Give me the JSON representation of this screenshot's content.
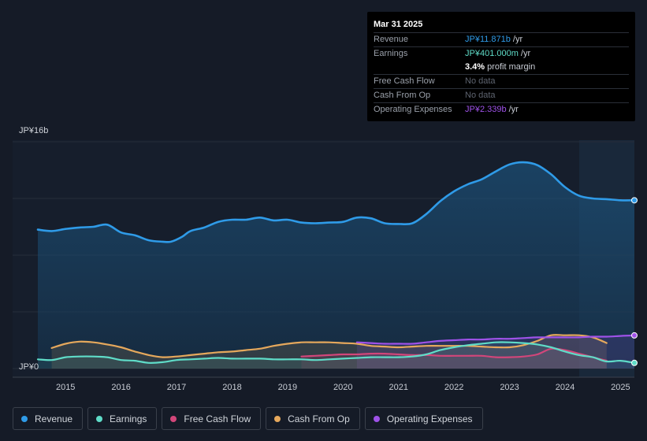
{
  "tooltip": {
    "date": "Mar 31 2025",
    "revenue_label": "Revenue",
    "revenue_value": "JP¥11.871b",
    "earnings_label": "Earnings",
    "earnings_value": "JP¥401.000m",
    "margin_value": "3.4%",
    "margin_text": "profit margin",
    "fcf_label": "Free Cash Flow",
    "cfo_label": "Cash From Op",
    "opex_label": "Operating Expenses",
    "opex_value": "JP¥2.339b",
    "per_year": "/yr",
    "no_data": "No data"
  },
  "colors": {
    "revenue": "#2f9be8",
    "earnings": "#5fdcc8",
    "fcf": "#d2467a",
    "cfo": "#e5a85c",
    "opex": "#9e52e8"
  },
  "legend": [
    {
      "label": "Revenue",
      "color": "#2f9be8"
    },
    {
      "label": "Earnings",
      "color": "#5fdcc8"
    },
    {
      "label": "Free Cash Flow",
      "color": "#d2467a"
    },
    {
      "label": "Cash From Op",
      "color": "#e5a85c"
    },
    {
      "label": "Operating Expenses",
      "color": "#9e52e8"
    }
  ],
  "chart_data": {
    "type": "area",
    "title": "",
    "y_unit": "JP¥ billions",
    "ylim": [
      0,
      16
    ],
    "y_tick_labels": [
      "JP¥16b",
      "JP¥0"
    ],
    "x_tick_labels": [
      "2015",
      "2016",
      "2017",
      "2018",
      "2019",
      "2020",
      "2021",
      "2022",
      "2023",
      "2024",
      "2025"
    ],
    "xlim": [
      2014.5,
      2025.25
    ],
    "series": [
      {
        "name": "Revenue",
        "key": "revenue",
        "points": [
          [
            2014.5,
            9.8
          ],
          [
            2014.75,
            9.7
          ],
          [
            2015.0,
            9.85
          ],
          [
            2015.25,
            9.95
          ],
          [
            2015.5,
            10.0
          ],
          [
            2015.75,
            10.15
          ],
          [
            2016.0,
            9.6
          ],
          [
            2016.25,
            9.4
          ],
          [
            2016.5,
            9.05
          ],
          [
            2016.75,
            8.95
          ],
          [
            2016.9,
            8.95
          ],
          [
            2017.1,
            9.3
          ],
          [
            2017.25,
            9.7
          ],
          [
            2017.5,
            9.95
          ],
          [
            2017.75,
            10.35
          ],
          [
            2018.0,
            10.5
          ],
          [
            2018.25,
            10.5
          ],
          [
            2018.5,
            10.65
          ],
          [
            2018.75,
            10.45
          ],
          [
            2019.0,
            10.5
          ],
          [
            2019.25,
            10.3
          ],
          [
            2019.5,
            10.25
          ],
          [
            2019.75,
            10.3
          ],
          [
            2020.0,
            10.35
          ],
          [
            2020.25,
            10.65
          ],
          [
            2020.5,
            10.6
          ],
          [
            2020.75,
            10.25
          ],
          [
            2021.0,
            10.2
          ],
          [
            2021.25,
            10.25
          ],
          [
            2021.5,
            10.9
          ],
          [
            2021.75,
            11.8
          ],
          [
            2022.0,
            12.5
          ],
          [
            2022.25,
            13.0
          ],
          [
            2022.5,
            13.35
          ],
          [
            2022.75,
            13.9
          ],
          [
            2023.0,
            14.4
          ],
          [
            2023.25,
            14.55
          ],
          [
            2023.5,
            14.35
          ],
          [
            2023.75,
            13.7
          ],
          [
            2024.0,
            12.8
          ],
          [
            2024.25,
            12.2
          ],
          [
            2024.5,
            12.0
          ],
          [
            2024.75,
            11.95
          ],
          [
            2025.0,
            11.87
          ],
          [
            2025.25,
            11.871
          ]
        ]
      },
      {
        "name": "Earnings",
        "key": "earnings",
        "points": [
          [
            2014.5,
            0.65
          ],
          [
            2014.75,
            0.6
          ],
          [
            2015.0,
            0.8
          ],
          [
            2015.25,
            0.85
          ],
          [
            2015.5,
            0.85
          ],
          [
            2015.75,
            0.8
          ],
          [
            2016.0,
            0.6
          ],
          [
            2016.25,
            0.55
          ],
          [
            2016.5,
            0.4
          ],
          [
            2016.75,
            0.45
          ],
          [
            2017.0,
            0.6
          ],
          [
            2017.25,
            0.65
          ],
          [
            2017.5,
            0.7
          ],
          [
            2017.75,
            0.75
          ],
          [
            2018.0,
            0.7
          ],
          [
            2018.25,
            0.7
          ],
          [
            2018.5,
            0.7
          ],
          [
            2018.75,
            0.65
          ],
          [
            2019.0,
            0.65
          ],
          [
            2019.25,
            0.65
          ],
          [
            2019.5,
            0.6
          ],
          [
            2019.75,
            0.65
          ],
          [
            2020.0,
            0.7
          ],
          [
            2020.25,
            0.75
          ],
          [
            2020.5,
            0.8
          ],
          [
            2020.75,
            0.8
          ],
          [
            2021.0,
            0.8
          ],
          [
            2021.25,
            0.85
          ],
          [
            2021.5,
            1.0
          ],
          [
            2021.75,
            1.3
          ],
          [
            2022.0,
            1.5
          ],
          [
            2022.25,
            1.65
          ],
          [
            2022.5,
            1.75
          ],
          [
            2022.75,
            1.85
          ],
          [
            2023.0,
            1.85
          ],
          [
            2023.25,
            1.8
          ],
          [
            2023.5,
            1.7
          ],
          [
            2023.75,
            1.5
          ],
          [
            2024.0,
            1.2
          ],
          [
            2024.25,
            0.95
          ],
          [
            2024.5,
            0.8
          ],
          [
            2024.75,
            0.5
          ],
          [
            2025.0,
            0.55
          ],
          [
            2025.25,
            0.401
          ]
        ]
      },
      {
        "name": "Free Cash Flow",
        "key": "fcf",
        "points": [
          [
            2019.25,
            0.85
          ],
          [
            2019.5,
            0.9
          ],
          [
            2019.75,
            0.95
          ],
          [
            2020.0,
            1.0
          ],
          [
            2020.25,
            1.0
          ],
          [
            2020.5,
            1.05
          ],
          [
            2020.75,
            1.05
          ],
          [
            2021.0,
            1.0
          ],
          [
            2021.25,
            0.95
          ],
          [
            2021.5,
            0.95
          ],
          [
            2021.75,
            0.9
          ],
          [
            2022.0,
            0.9
          ],
          [
            2022.25,
            0.9
          ],
          [
            2022.5,
            0.9
          ],
          [
            2022.75,
            0.8
          ],
          [
            2023.0,
            0.8
          ],
          [
            2023.25,
            0.85
          ],
          [
            2023.5,
            1.0
          ],
          [
            2023.75,
            1.4
          ],
          [
            2024.0,
            1.3
          ],
          [
            2024.25,
            1.05
          ],
          [
            2024.5,
            0.8
          ],
          [
            2024.75,
            0.55
          ]
        ]
      },
      {
        "name": "Cash From Op",
        "key": "cfo",
        "points": [
          [
            2014.75,
            1.45
          ],
          [
            2015.0,
            1.75
          ],
          [
            2015.25,
            1.9
          ],
          [
            2015.5,
            1.85
          ],
          [
            2015.75,
            1.7
          ],
          [
            2016.0,
            1.5
          ],
          [
            2016.25,
            1.2
          ],
          [
            2016.5,
            0.95
          ],
          [
            2016.75,
            0.8
          ],
          [
            2017.0,
            0.85
          ],
          [
            2017.25,
            0.95
          ],
          [
            2017.5,
            1.05
          ],
          [
            2017.75,
            1.15
          ],
          [
            2018.0,
            1.2
          ],
          [
            2018.25,
            1.3
          ],
          [
            2018.5,
            1.4
          ],
          [
            2018.75,
            1.6
          ],
          [
            2019.0,
            1.75
          ],
          [
            2019.25,
            1.85
          ],
          [
            2019.5,
            1.85
          ],
          [
            2019.75,
            1.85
          ],
          [
            2020.0,
            1.8
          ],
          [
            2020.25,
            1.75
          ],
          [
            2020.5,
            1.6
          ],
          [
            2020.75,
            1.55
          ],
          [
            2021.0,
            1.5
          ],
          [
            2021.25,
            1.55
          ],
          [
            2021.5,
            1.6
          ],
          [
            2021.75,
            1.6
          ],
          [
            2022.0,
            1.6
          ],
          [
            2022.25,
            1.6
          ],
          [
            2022.5,
            1.55
          ],
          [
            2022.75,
            1.5
          ],
          [
            2023.0,
            1.5
          ],
          [
            2023.25,
            1.65
          ],
          [
            2023.5,
            1.95
          ],
          [
            2023.75,
            2.35
          ],
          [
            2024.0,
            2.35
          ],
          [
            2024.25,
            2.35
          ],
          [
            2024.5,
            2.2
          ],
          [
            2024.75,
            1.8
          ]
        ]
      },
      {
        "name": "Operating Expenses",
        "key": "opex",
        "points": [
          [
            2020.25,
            1.85
          ],
          [
            2020.5,
            1.8
          ],
          [
            2020.75,
            1.75
          ],
          [
            2021.0,
            1.75
          ],
          [
            2021.25,
            1.75
          ],
          [
            2021.5,
            1.85
          ],
          [
            2021.75,
            1.95
          ],
          [
            2022.0,
            2.0
          ],
          [
            2022.25,
            2.05
          ],
          [
            2022.5,
            2.05
          ],
          [
            2022.75,
            2.1
          ],
          [
            2023.0,
            2.1
          ],
          [
            2023.25,
            2.15
          ],
          [
            2023.5,
            2.2
          ],
          [
            2023.75,
            2.2
          ],
          [
            2024.0,
            2.2
          ],
          [
            2024.25,
            2.2
          ],
          [
            2024.5,
            2.25
          ],
          [
            2024.75,
            2.25
          ],
          [
            2025.0,
            2.3
          ],
          [
            2025.25,
            2.339
          ]
        ]
      }
    ]
  }
}
